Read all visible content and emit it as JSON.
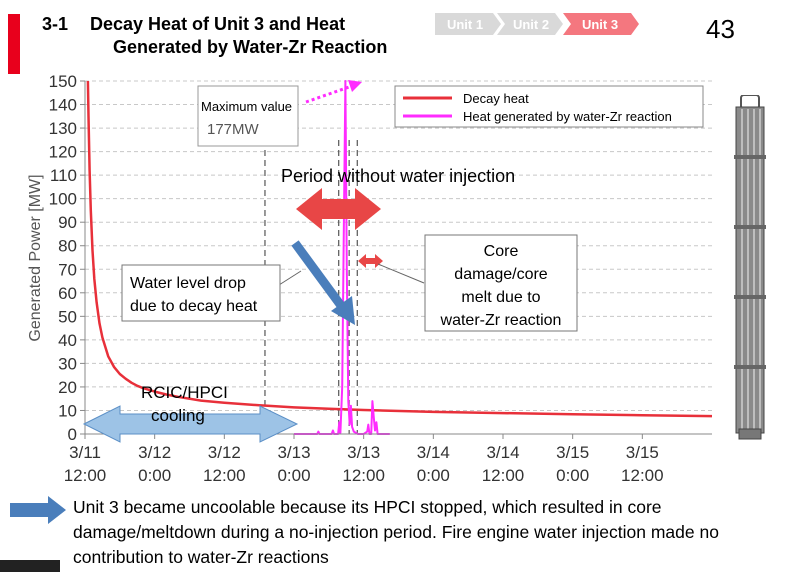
{
  "header": {
    "section_number": "3-1",
    "title_line1": "Decay Heat of Unit 3 and Heat",
    "title_line2": "Generated by Water-Zr Reaction",
    "page_number": "43",
    "unit_tabs": [
      {
        "label": "Unit 1",
        "active": false
      },
      {
        "label": "Unit 2",
        "active": false
      },
      {
        "label": "Unit 3",
        "active": true
      }
    ],
    "colors": {
      "accent": "#e8001c",
      "tab_inactive": "#d9d9d9",
      "tab_active": "#f4777f"
    }
  },
  "chart_data": {
    "type": "line",
    "ylabel": "Generated Power [MW]",
    "xlabel": "",
    "ylim": [
      0,
      150
    ],
    "yticks": [
      0,
      10,
      20,
      30,
      40,
      50,
      60,
      70,
      80,
      90,
      100,
      110,
      120,
      130,
      140,
      150
    ],
    "xlim_hours": [
      0,
      108
    ],
    "xticks": [
      {
        "hours": 0,
        "line1": "3/11",
        "line2": "12:00"
      },
      {
        "hours": 12,
        "line1": "3/12",
        "line2": "0:00"
      },
      {
        "hours": 24,
        "line1": "3/12",
        "line2": "12:00"
      },
      {
        "hours": 36,
        "line1": "3/13",
        "line2": "0:00"
      },
      {
        "hours": 48,
        "line1": "3/13",
        "line2": "12:00"
      },
      {
        "hours": 60,
        "line1": "3/14",
        "line2": "0:00"
      },
      {
        "hours": 72,
        "line1": "3/14",
        "line2": "12:00"
      },
      {
        "hours": 84,
        "line1": "3/15",
        "line2": "0:00"
      },
      {
        "hours": 96,
        "line1": "3/15",
        "line2": "12:00"
      }
    ],
    "legend_position": "top-right",
    "series": [
      {
        "name": "Decay heat",
        "color": "#e8303a",
        "points": [
          [
            0.5,
            150
          ],
          [
            0.6,
            135
          ],
          [
            0.8,
            112
          ],
          [
            1,
            95
          ],
          [
            1.3,
            78
          ],
          [
            1.6,
            66
          ],
          [
            2,
            56
          ],
          [
            2.5,
            47
          ],
          [
            3,
            41
          ],
          [
            4,
            33
          ],
          [
            5,
            28.5
          ],
          [
            6,
            25.5
          ],
          [
            7,
            23.5
          ],
          [
            8,
            21.8
          ],
          [
            9,
            20.5
          ],
          [
            10,
            19.5
          ],
          [
            12,
            18
          ],
          [
            14,
            16.8
          ],
          [
            16,
            15.8
          ],
          [
            20,
            14.2
          ],
          [
            24,
            13.3
          ],
          [
            30,
            12.2
          ],
          [
            36,
            11.3
          ],
          [
            42,
            10.7
          ],
          [
            48,
            10.2
          ],
          [
            60,
            9.4
          ],
          [
            72,
            8.9
          ],
          [
            84,
            8.4
          ],
          [
            96,
            8
          ],
          [
            108,
            7.6
          ]
        ]
      },
      {
        "name": "Heat generated by water-Zr reaction",
        "color": "#ff2bff",
        "points": [
          [
            36,
            0
          ],
          [
            40,
            0
          ],
          [
            40.2,
            1
          ],
          [
            40.4,
            0
          ],
          [
            42.5,
            0
          ],
          [
            42.7,
            1.5
          ],
          [
            42.9,
            0
          ],
          [
            43.6,
            0
          ],
          [
            43.8,
            5
          ],
          [
            44,
            0.5
          ],
          [
            44.3,
            20
          ],
          [
            44.6,
            90
          ],
          [
            44.85,
            177
          ],
          [
            45.1,
            70
          ],
          [
            45.35,
            14
          ],
          [
            45.6,
            4
          ],
          [
            45.8,
            12
          ],
          [
            46.0,
            3
          ],
          [
            46.3,
            1
          ],
          [
            47,
            0
          ],
          [
            48,
            0
          ],
          [
            48.6,
            1
          ],
          [
            48.8,
            4
          ],
          [
            49,
            0
          ],
          [
            49.3,
            0
          ],
          [
            49.5,
            14
          ],
          [
            49.75,
            7
          ],
          [
            49.95,
            1.5
          ],
          [
            50.2,
            5
          ],
          [
            50.4,
            0
          ],
          [
            51,
            0
          ],
          [
            52.5,
            0
          ]
        ]
      }
    ],
    "vertical_markers_hours": [
      31,
      43.7,
      45.5,
      46.9
    ],
    "annotations": {
      "max_value_title": "Maximum value",
      "max_value_amount": "177MW",
      "period_label": "Period without water injection",
      "water_drop_line1": "Water level drop",
      "water_drop_line2": "due to decay heat",
      "core_damage_lines": [
        "Core",
        "damage/core",
        "melt due to",
        "water-Zr reaction"
      ],
      "cooling_line1": "RCIC/HPCI",
      "cooling_line2": "cooling"
    }
  },
  "footer": {
    "text": "Unit 3 became uncoolable because its HPCI stopped, which resulted in core damage/meltdown during a no-injection period. Fire engine water injection made no contribution to water-Zr reactions"
  }
}
